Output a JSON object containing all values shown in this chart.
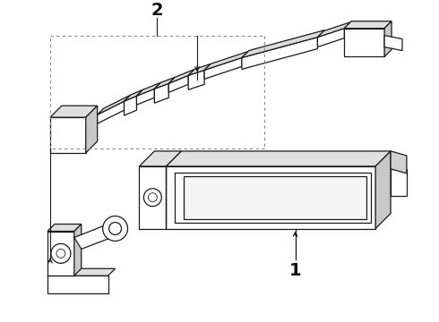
{
  "background_color": "#ffffff",
  "line_color": "#1a1a1a",
  "gray_fill": "#e8e8e8",
  "mid_gray": "#cccccc",
  "dark_gray": "#aaaaaa",
  "fig_width": 4.9,
  "fig_height": 3.6,
  "dpi": 100,
  "label1": "1",
  "label2": "2",
  "box_color": "#999999"
}
